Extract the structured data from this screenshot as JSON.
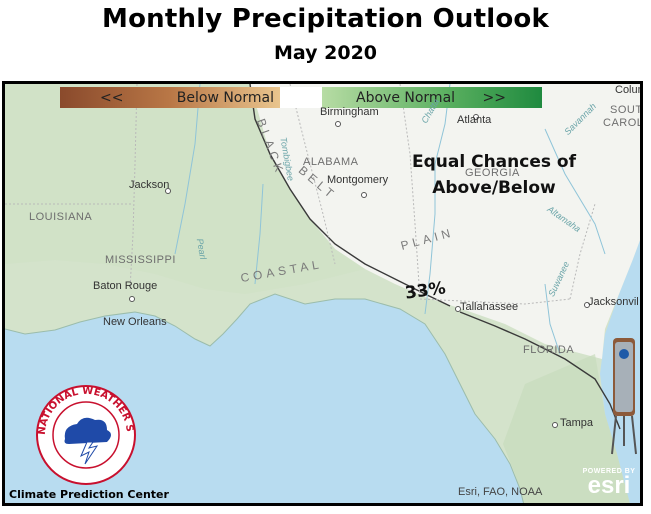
{
  "header": {
    "title": "Monthly Precipitation Outlook",
    "subtitle": "May 2020"
  },
  "legend": {
    "below_arrow": "<<",
    "below_label": "Below Normal",
    "above_label": "Above Normal",
    "above_arrow": ">>",
    "colors": {
      "below": "#8a4a2c",
      "normal": "#ffffff",
      "above": "#1f8a3f"
    }
  },
  "map": {
    "annotation_line1": "Equal Chances of",
    "annotation_line2": "Above/Below",
    "probability": "33%",
    "cities": {
      "birmingham": "Birmingham",
      "atlanta": "Atlanta",
      "jackson": "Jackson",
      "montgomery": "Montgomery",
      "baton_rouge": "Baton Rouge",
      "new_orleans": "New Orleans",
      "tallahassee": "Tallahassee",
      "jacksonville": "Jacksonvil",
      "tampa": "Tampa",
      "columbia": "Colum",
      "savannah": "Savannah"
    },
    "states": {
      "alabama": "ALABAMA",
      "georgia": "GEORGIA",
      "louisiana": "LOUISIANA",
      "mississippi": "MISSISSIPPI",
      "florida": "FLORIDA",
      "south": "SOUTH",
      "carol": "CAROL"
    },
    "regions": {
      "black": "BLACK",
      "belt": "BELT",
      "coastal": "COASTAL",
      "plain": "PLAIN"
    },
    "waters": {
      "chattahoochee": "Chatta",
      "altamaha": "Altamaha",
      "suwannee": "Suwanee",
      "tombigbee": "Tombigbee",
      "pearl": "Pearl"
    }
  },
  "credits": {
    "cpc": "Climate Prediction Center",
    "sources": "Esri, FAO, NOAA",
    "powered_by": "POWERED BY",
    "esri": "esri"
  },
  "logos": {
    "nws_text": "NATIONAL WEATHER SERVICE"
  }
}
